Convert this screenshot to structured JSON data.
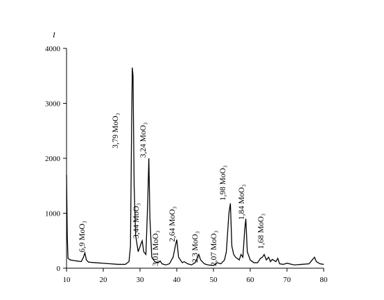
{
  "chart_data": {
    "type": "line",
    "y_label": "I",
    "color": "#000000",
    "xlim": [
      10,
      80
    ],
    "xticks": [
      10,
      20,
      30,
      40,
      50,
      60,
      70,
      80
    ],
    "ylim": [
      0,
      4000
    ],
    "yticks": [
      0,
      1000,
      2000,
      3000,
      4000
    ],
    "grid": false,
    "x": [
      10.0,
      10.2,
      10.4,
      11,
      12,
      13,
      14,
      14.6,
      15,
      15.4,
      16,
      18,
      20,
      22,
      24,
      26,
      27,
      27.4,
      27.7,
      27.9,
      28.1,
      28.4,
      28.8,
      29.5,
      30.3,
      30.6,
      31,
      31.6,
      32.1,
      32.4,
      32.7,
      33.2,
      34,
      35,
      35.5,
      36,
      37,
      38,
      39,
      39.6,
      40,
      40.5,
      41.5,
      42,
      43,
      44,
      45,
      46,
      46.5,
      47.5,
      48.5,
      50,
      51,
      52,
      53,
      53.5,
      54.2,
      54.6,
      55,
      55.5,
      56,
      57,
      57.5,
      58,
      58.5,
      58.8,
      59.2,
      60,
      61,
      62,
      62.8,
      63.3,
      63.8,
      64.4,
      65,
      65.5,
      66,
      67,
      67.5,
      68,
      69,
      70,
      72,
      74,
      76,
      77,
      77.5,
      78,
      79,
      80
    ],
    "values": [
      1700,
      600,
      180,
      150,
      140,
      130,
      120,
      200,
      280,
      150,
      110,
      100,
      90,
      80,
      70,
      70,
      120,
      400,
      2500,
      3650,
      3500,
      1500,
      600,
      300,
      450,
      500,
      300,
      250,
      1200,
      2000,
      900,
      200,
      120,
      100,
      130,
      80,
      60,
      80,
      200,
      400,
      520,
      200,
      100,
      120,
      80,
      60,
      100,
      250,
      150,
      80,
      60,
      50,
      100,
      80,
      150,
      300,
      1000,
      1180,
      400,
      250,
      200,
      150,
      250,
      200,
      700,
      900,
      300,
      150,
      100,
      100,
      180,
      200,
      250,
      150,
      200,
      120,
      160,
      120,
      180,
      80,
      70,
      90,
      60,
      70,
      80,
      160,
      200,
      120,
      80,
      70
    ],
    "annotations": [
      {
        "text": "6,9 MoO₃",
        "x": 14.9,
        "y": 290
      },
      {
        "text": "3,79 MoO₃",
        "x": 24.0,
        "y": 2180
      },
      {
        "text": "3,44 MoO₃",
        "x": 29.6,
        "y": 540
      },
      {
        "text": "3,24 MoO₃",
        "x": 31.5,
        "y": 2010
      },
      {
        "text": "3,01 MoO₃",
        "x": 34.9,
        "y": 40
      },
      {
        "text": "2,64 MoO₃",
        "x": 39.4,
        "y": 480
      },
      {
        "text": "2,3 MoO₃",
        "x": 45.7,
        "y": 100
      },
      {
        "text": "2,07 MoO₃",
        "x": 50.8,
        "y": 40
      },
      {
        "text": "1,98 MoO₃",
        "x": 53.2,
        "y": 1230
      },
      {
        "text": "1,84 MoO₃",
        "x": 58.3,
        "y": 880
      },
      {
        "text": "1,68 MoO₃",
        "x": 63.6,
        "y": 350
      }
    ]
  }
}
